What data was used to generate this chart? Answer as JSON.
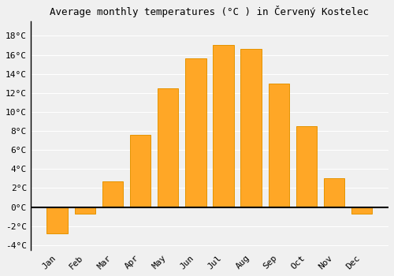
{
  "months": [
    "Jan",
    "Feb",
    "Mar",
    "Apr",
    "May",
    "Jun",
    "Jul",
    "Aug",
    "Sep",
    "Oct",
    "Nov",
    "Dec"
  ],
  "values": [
    -2.8,
    -0.7,
    2.7,
    7.6,
    12.5,
    15.6,
    17.0,
    16.6,
    13.0,
    8.5,
    3.0,
    -0.7
  ],
  "bar_color": "#FFA726",
  "bar_edge_color": "#E59400",
  "title": "Average monthly temperatures (°C ) in Červený Kostelec",
  "ylim": [
    -4.5,
    19.5
  ],
  "yticks": [
    -4,
    -2,
    0,
    2,
    4,
    6,
    8,
    10,
    12,
    14,
    16,
    18
  ],
  "ylabel_format": "°C",
  "background_color": "#f0f0f0",
  "grid_color": "#ffffff",
  "title_fontsize": 9,
  "tick_fontsize": 8,
  "bar_width": 0.75
}
